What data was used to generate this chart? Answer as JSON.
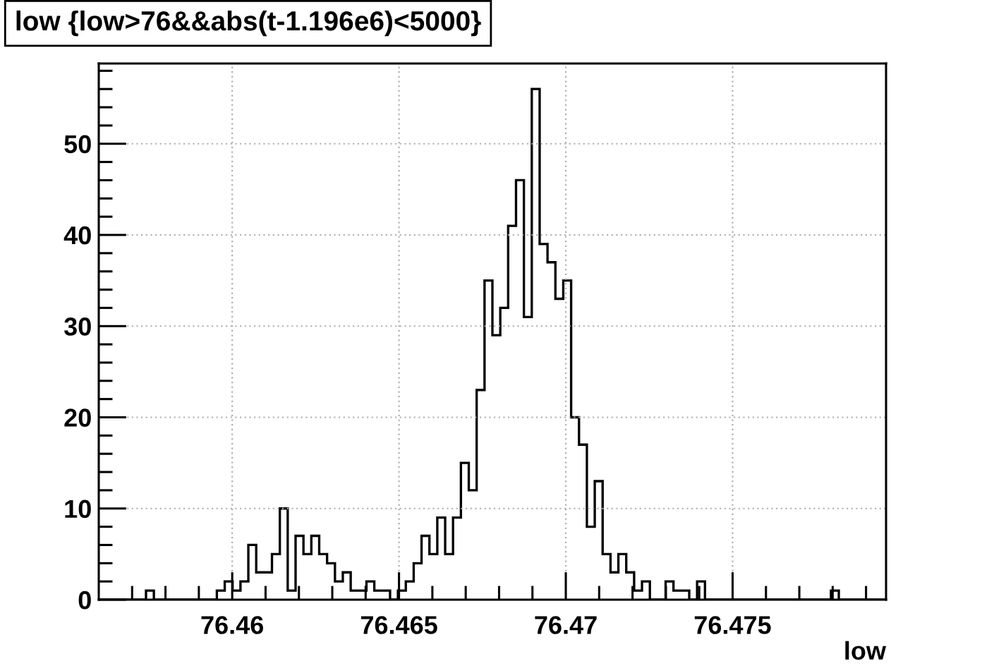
{
  "chart_data": {
    "type": "histogram",
    "title": "low {low>76&&abs(t-1.196e6)<5000}",
    "xlabel": "low",
    "bins": [
      76.456,
      76.456236,
      76.456472,
      76.456708,
      76.456944,
      76.45718,
      76.457416,
      76.457652,
      76.457888,
      76.458124,
      76.45836,
      76.458596,
      76.458832,
      76.459068,
      76.459304,
      76.45954,
      76.459776,
      76.460012,
      76.460248,
      76.460484,
      76.46072,
      76.460956,
      76.461192,
      76.461428,
      76.461664,
      76.4619,
      76.462136,
      76.462372,
      76.462608,
      76.462844,
      76.46308,
      76.463316,
      76.463552,
      76.463788,
      76.464024,
      76.46426,
      76.464496,
      76.464732,
      76.464968,
      76.465204,
      76.46544,
      76.465676,
      76.465912,
      76.466148,
      76.466384,
      76.46662,
      76.466856,
      76.467092,
      76.467328,
      76.467564,
      76.4678,
      76.468036,
      76.468272,
      76.468508,
      76.468744,
      76.46898,
      76.469216,
      76.469452,
      76.469688,
      76.469924,
      76.47016,
      76.470396,
      76.470632,
      76.470868,
      76.471104,
      76.47134,
      76.471576,
      76.471812,
      76.472048,
      76.472284,
      76.47252,
      76.472756,
      76.472992,
      76.473228,
      76.473464,
      76.4737,
      76.473936,
      76.474172,
      76.474408,
      76.474644,
      76.47488,
      76.475116,
      76.475352,
      76.475588,
      76.475824,
      76.47606,
      76.476296,
      76.476532,
      76.476768,
      76.477004,
      76.47724,
      76.477476,
      76.477712,
      76.477948,
      76.478184,
      76.47842,
      76.478656,
      76.478892,
      76.479128,
      76.479364,
      76.4796
    ],
    "values": [
      0,
      0,
      0,
      0,
      0,
      0,
      1,
      0,
      0,
      0,
      0,
      0,
      0,
      0,
      0,
      1,
      2,
      1,
      2,
      6,
      3,
      3,
      5,
      10,
      1,
      7,
      5,
      7,
      5,
      4,
      2,
      3,
      1,
      1,
      2,
      1,
      1,
      0,
      1,
      2,
      4,
      7,
      5,
      9,
      5,
      9,
      15,
      12,
      23,
      35,
      29,
      32,
      41,
      46,
      31,
      56,
      39,
      37,
      33,
      35,
      20,
      17,
      8,
      13,
      5,
      3,
      5,
      3,
      1,
      2,
      0,
      0,
      2,
      1,
      1,
      0,
      2,
      0,
      0,
      0,
      0,
      0,
      0,
      0,
      0,
      0,
      0,
      0,
      0,
      0,
      0,
      0,
      0,
      1,
      0,
      0,
      0,
      0,
      0,
      0
    ],
    "color": "#000000",
    "xlim": [
      76.456,
      76.4796
    ],
    "ylim": [
      0,
      58.8
    ],
    "xticks": [
      {
        "value": 76.457,
        "label": null
      },
      {
        "value": 76.458,
        "label": null
      },
      {
        "value": 76.459,
        "label": null
      },
      76.46,
      {
        "value": 76.461,
        "label": null
      },
      {
        "value": 76.462,
        "label": null
      },
      {
        "value": 76.463,
        "label": null
      },
      {
        "value": 76.464,
        "label": null
      },
      76.465,
      {
        "value": 76.466,
        "label": null
      },
      {
        "value": 76.467,
        "label": null
      },
      {
        "value": 76.468,
        "label": null
      },
      {
        "value": 76.469,
        "label": null
      },
      76.47,
      {
        "value": 76.471,
        "label": null
      },
      {
        "value": 76.472,
        "label": null
      },
      {
        "value": 76.473,
        "label": null
      },
      {
        "value": 76.474,
        "label": null
      },
      76.475,
      {
        "value": 76.476,
        "label": null
      },
      {
        "value": 76.477,
        "label": null
      },
      {
        "value": 76.478,
        "label": null
      },
      {
        "value": 76.479,
        "label": null
      }
    ],
    "yticks": [
      0,
      {
        "value": 2,
        "label": null
      },
      {
        "value": 4,
        "label": null
      },
      {
        "value": 6,
        "label": null
      },
      {
        "value": 8,
        "label": null
      },
      10,
      {
        "value": 12,
        "label": null
      },
      {
        "value": 14,
        "label": null
      },
      {
        "value": 16,
        "label": null
      },
      {
        "value": 18,
        "label": null
      },
      20,
      {
        "value": 22,
        "label": null
      },
      {
        "value": 24,
        "label": null
      },
      {
        "value": 26,
        "label": null
      },
      {
        "value": 28,
        "label": null
      },
      30,
      {
        "value": 32,
        "label": null
      },
      {
        "value": 34,
        "label": null
      },
      {
        "value": 36,
        "label": null
      },
      {
        "value": 38,
        "label": null
      },
      40,
      {
        "value": 42,
        "label": null
      },
      {
        "value": 44,
        "label": null
      },
      {
        "value": 46,
        "label": null
      },
      {
        "value": 48,
        "label": null
      },
      50,
      {
        "value": 52,
        "label": null
      },
      {
        "value": 54,
        "label": null
      },
      {
        "value": 56,
        "label": null
      },
      {
        "value": 58,
        "label": null
      }
    ],
    "grid": true
  }
}
